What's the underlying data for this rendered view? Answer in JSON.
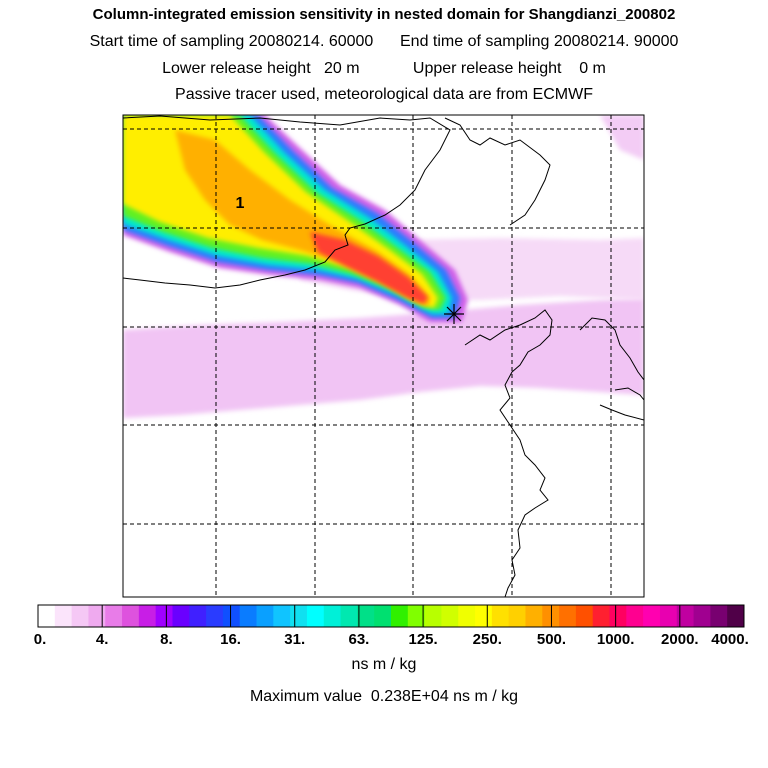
{
  "header": {
    "title": "Column-integrated emission sensitivity in nested domain for Shangdianzi_200802",
    "start_label": "Start time of sampling 20080214. 60000",
    "end_label": "End time of sampling 20080214. 90000",
    "lower_label": "Lower release height   20 m",
    "upper_label": "Upper release height    0 m",
    "note": "Passive tracer used, meteorological data are from ECMWF"
  },
  "map": {
    "plume_label": "1",
    "grid": true,
    "colors": {
      "coast": "#000000",
      "grid": "#000000",
      "low_field": "#f2c0f5"
    }
  },
  "chart_data": {
    "type": "heatmap",
    "colorbar": {
      "tick_labels": [
        "0.",
        "4.",
        "8.",
        "16.",
        "31.",
        "63.",
        "125.",
        "250.",
        "500.",
        "1000.",
        "2000.",
        "4000."
      ],
      "colors": [
        "#ffffff",
        "#fbe4fb",
        "#f5c8f5",
        "#efaaef",
        "#e87ce8",
        "#de52de",
        "#c81ee6",
        "#a000ff",
        "#6a00ff",
        "#4020ff",
        "#2a3cff",
        "#1050ff",
        "#0a7cff",
        "#0aa0ff",
        "#10c4ff",
        "#10e0f0",
        "#00ffff",
        "#00f0d8",
        "#00e8b0",
        "#00e088",
        "#00e070",
        "#30f000",
        "#80ff00",
        "#b8ff00",
        "#d0ff00",
        "#f0ff00",
        "#ffff00",
        "#ffe000",
        "#ffd000",
        "#ffb000",
        "#ff9000",
        "#ff7000",
        "#ff5000",
        "#ff2030",
        "#ff0060",
        "#ff0090",
        "#ff00b0",
        "#e800b0",
        "#c000a0",
        "#a00090",
        "#780070",
        "#500048"
      ]
    },
    "units": "ns m / kg",
    "max_value_text": "Maximum value  0.238E+04 ns m / kg"
  }
}
